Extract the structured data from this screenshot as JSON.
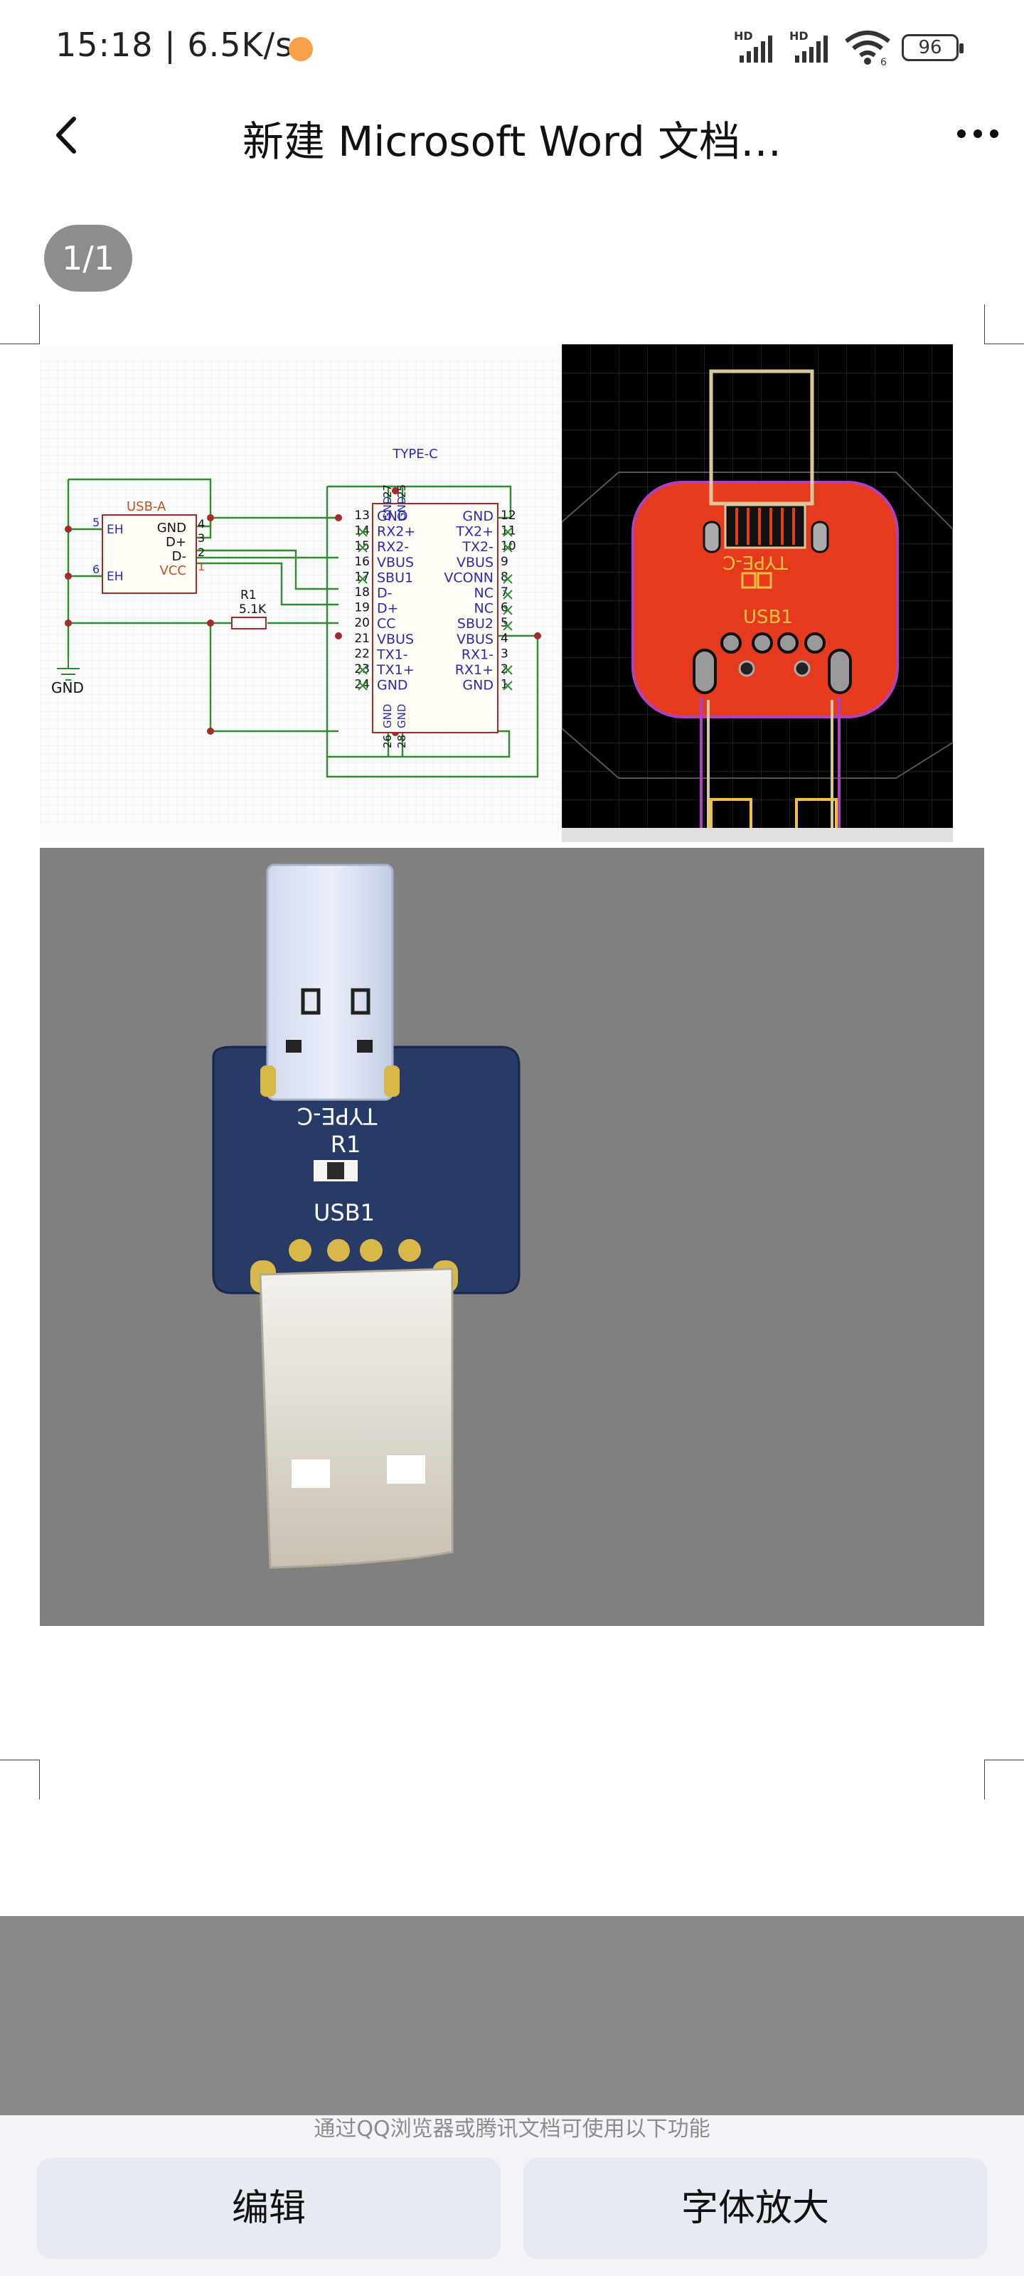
{
  "status": {
    "time": "15:18",
    "net_speed": "6.5K/s",
    "sim1": "HD",
    "sim2": "HD",
    "wifi_badge": "6",
    "battery": "96"
  },
  "header": {
    "title": "新建 Microsoft Word 文档…"
  },
  "viewer": {
    "page_indicator": "1/1"
  },
  "schematic": {
    "title": "TYPE-C",
    "usba_title": "USB-A",
    "usba_pins_left": [
      "5",
      "6"
    ],
    "usba_eh": [
      "EH",
      "EH"
    ],
    "usba_names": [
      "GND",
      "D+",
      "D-",
      "VCC"
    ],
    "usba_nums": [
      "4",
      "3",
      "2",
      "1"
    ],
    "r1_name": "R1",
    "r1_value": "5.1K",
    "gnd_label": "GND",
    "c_left_nums": [
      "13",
      "14",
      "15",
      "16",
      "17",
      "18",
      "19",
      "20",
      "21",
      "22",
      "23",
      "24"
    ],
    "c_left_names": [
      "GND",
      "RX2+",
      "RX2-",
      "VBUS",
      "SBU1",
      "D-",
      "D+",
      "CC",
      "VBUS",
      "TX1-",
      "TX1+",
      "GND"
    ],
    "c_right_names": [
      "GND",
      "TX2+",
      "TX2-",
      "VBUS",
      "VCONN",
      "NC",
      "NC",
      "SBU2",
      "VBUS",
      "RX1-",
      "RX1+",
      "GND"
    ],
    "c_right_nums": [
      "12",
      "11",
      "10",
      "9",
      "8",
      "7",
      "6",
      "5",
      "4",
      "3",
      "2",
      "1"
    ],
    "c_top_nums": [
      "27",
      "25"
    ],
    "c_bottom_nums": [
      "26",
      "28"
    ],
    "c_gnd": "GND"
  },
  "pcb": {
    "silk_typec": "TYPE-C",
    "silk_usb1": "USB1"
  },
  "render": {
    "silk_typec": "TYPE-C",
    "silk_r1": "R1",
    "silk_usb1": "USB1"
  },
  "bottom": {
    "hint": "通过QQ浏览器或腾讯文档可使用以下功能",
    "edit_label": "编辑",
    "zoom_label": "字体放大"
  }
}
